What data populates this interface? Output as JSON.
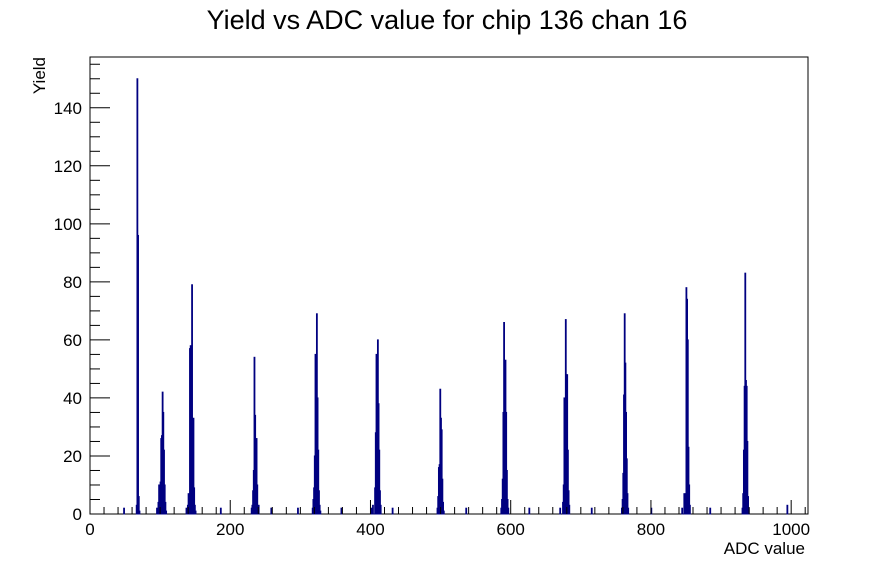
{
  "chart_data": {
    "type": "bar",
    "title": "Yield vs ADC value for chip 136 chan 16",
    "xlabel": "ADC value",
    "ylabel": "Yield",
    "xlim": [
      0,
      1024
    ],
    "ylim": [
      0,
      157.5
    ],
    "x_ticks": [
      0,
      200,
      400,
      600,
      800,
      1000
    ],
    "y_ticks": [
      0,
      20,
      40,
      60,
      80,
      100,
      120,
      140
    ],
    "grid": false,
    "bin_width": 1,
    "line_color": "#000080",
    "series": [
      {
        "bins": [
          [
            48,
            2
          ],
          [
            66,
            3
          ],
          [
            67,
            150
          ],
          [
            68,
            96
          ],
          [
            69,
            6
          ],
          [
            70,
            1
          ],
          [
            95,
            2
          ],
          [
            97,
            4
          ],
          [
            98,
            10
          ],
          [
            99,
            9
          ],
          [
            100,
            11
          ],
          [
            101,
            26
          ],
          [
            102,
            27
          ],
          [
            103,
            42
          ],
          [
            104,
            35
          ],
          [
            105,
            22
          ],
          [
            106,
            10
          ],
          [
            107,
            4
          ],
          [
            108,
            1
          ],
          [
            137,
            2
          ],
          [
            139,
            3
          ],
          [
            140,
            7
          ],
          [
            141,
            5
          ],
          [
            142,
            57
          ],
          [
            143,
            58
          ],
          [
            144,
            25
          ],
          [
            145,
            79
          ],
          [
            146,
            30
          ],
          [
            147,
            33
          ],
          [
            148,
            9
          ],
          [
            149,
            3
          ],
          [
            150,
            1
          ],
          [
            186,
            2
          ],
          [
            230,
            2
          ],
          [
            231,
            3
          ],
          [
            232,
            8
          ],
          [
            233,
            15
          ],
          [
            234,
            54
          ],
          [
            235,
            34
          ],
          [
            236,
            18
          ],
          [
            237,
            26
          ],
          [
            238,
            10
          ],
          [
            239,
            2
          ],
          [
            240,
            3
          ],
          [
            258,
            2
          ],
          [
            296,
            2
          ],
          [
            317,
            2
          ],
          [
            318,
            5
          ],
          [
            319,
            9
          ],
          [
            320,
            20
          ],
          [
            321,
            55
          ],
          [
            322,
            53
          ],
          [
            323,
            69
          ],
          [
            324,
            40
          ],
          [
            325,
            22
          ],
          [
            326,
            8
          ],
          [
            327,
            3
          ],
          [
            328,
            1
          ],
          [
            358,
            2
          ],
          [
            401,
            2
          ],
          [
            403,
            3
          ],
          [
            406,
            9
          ],
          [
            407,
            28
          ],
          [
            408,
            55
          ],
          [
            409,
            53
          ],
          [
            410,
            60
          ],
          [
            411,
            38
          ],
          [
            412,
            22
          ],
          [
            413,
            8
          ],
          [
            414,
            3
          ],
          [
            431,
            2
          ],
          [
            495,
            2
          ],
          [
            496,
            6
          ],
          [
            497,
            16
          ],
          [
            498,
            17
          ],
          [
            499,
            43
          ],
          [
            500,
            33
          ],
          [
            501,
            29
          ],
          [
            502,
            12
          ],
          [
            503,
            4
          ],
          [
            504,
            1
          ],
          [
            536,
            2
          ],
          [
            586,
            2
          ],
          [
            587,
            5
          ],
          [
            588,
            12
          ],
          [
            589,
            35
          ],
          [
            590,
            66
          ],
          [
            591,
            37
          ],
          [
            592,
            53
          ],
          [
            593,
            35
          ],
          [
            594,
            15
          ],
          [
            595,
            5
          ],
          [
            596,
            2
          ],
          [
            626,
            2
          ],
          [
            670,
            2
          ],
          [
            674,
            4
          ],
          [
            675,
            10
          ],
          [
            676,
            40
          ],
          [
            677,
            23
          ],
          [
            678,
            67
          ],
          [
            679,
            48
          ],
          [
            680,
            48
          ],
          [
            681,
            22
          ],
          [
            682,
            8
          ],
          [
            683,
            3
          ],
          [
            715,
            2
          ],
          [
            758,
            2
          ],
          [
            759,
            5
          ],
          [
            760,
            14
          ],
          [
            761,
            41
          ],
          [
            762,
            69
          ],
          [
            763,
            52
          ],
          [
            764,
            35
          ],
          [
            765,
            19
          ],
          [
            766,
            7
          ],
          [
            767,
            2
          ],
          [
            800,
            2
          ],
          [
            844,
            2
          ],
          [
            847,
            7
          ],
          [
            848,
            3
          ],
          [
            849,
            7
          ],
          [
            850,
            78
          ],
          [
            851,
            74
          ],
          [
            852,
            60
          ],
          [
            853,
            23
          ],
          [
            854,
            10
          ],
          [
            855,
            3
          ],
          [
            884,
            2
          ],
          [
            930,
            2
          ],
          [
            931,
            7
          ],
          [
            932,
            22
          ],
          [
            933,
            44
          ],
          [
            934,
            83
          ],
          [
            935,
            46
          ],
          [
            936,
            44
          ],
          [
            937,
            25
          ],
          [
            938,
            6
          ],
          [
            939,
            2
          ],
          [
            994,
            3
          ]
        ]
      }
    ]
  }
}
